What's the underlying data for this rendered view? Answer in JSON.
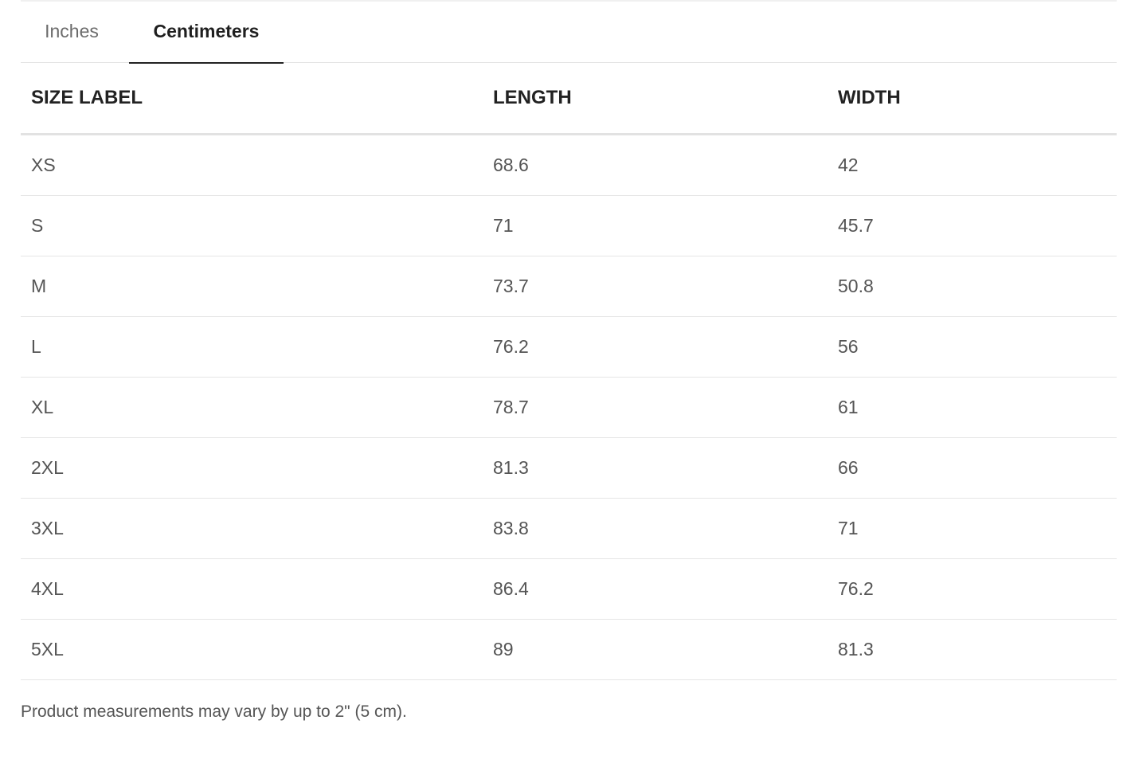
{
  "tabs": [
    {
      "label": "Inches",
      "active": false
    },
    {
      "label": "Centimeters",
      "active": true
    }
  ],
  "table": {
    "headers": [
      "SIZE LABEL",
      "LENGTH",
      "WIDTH"
    ],
    "rows": [
      [
        "XS",
        "68.6",
        "42"
      ],
      [
        "S",
        "71",
        "45.7"
      ],
      [
        "M",
        "73.7",
        "50.8"
      ],
      [
        "L",
        "76.2",
        "56"
      ],
      [
        "XL",
        "78.7",
        "61"
      ],
      [
        "2XL",
        "81.3",
        "66"
      ],
      [
        "3XL",
        "83.8",
        "71"
      ],
      [
        "4XL",
        "86.4",
        "76.2"
      ],
      [
        "5XL",
        "89",
        "81.3"
      ]
    ]
  },
  "note": "Product measurements may vary by up to 2\" (5 cm)."
}
